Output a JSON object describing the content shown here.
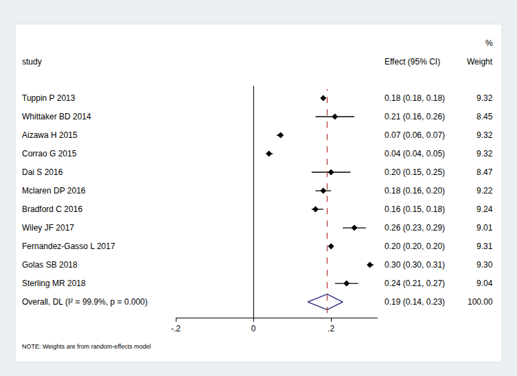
{
  "chart_data": {
    "type": "forest",
    "columns": {
      "study": "study",
      "effect": "Effect (95% CI)",
      "weight_unit": "%",
      "weight": "Weight"
    },
    "studies": [
      {
        "name": "Tuppin P 2013",
        "effect": 0.18,
        "ci_low": 0.18,
        "ci_high": 0.18,
        "effect_label": "0.18 (0.18, 0.18)",
        "weight": 9.32
      },
      {
        "name": "Whittaker BD 2014",
        "effect": 0.21,
        "ci_low": 0.16,
        "ci_high": 0.26,
        "effect_label": "0.21 (0.16, 0.26)",
        "weight": 8.45
      },
      {
        "name": "Aizawa H 2015",
        "effect": 0.07,
        "ci_low": 0.06,
        "ci_high": 0.07,
        "effect_label": "0.07 (0.06, 0.07)",
        "weight": 9.32
      },
      {
        "name": "Corrao G 2015",
        "effect": 0.04,
        "ci_low": 0.04,
        "ci_high": 0.05,
        "effect_label": "0.04 (0.04, 0.05)",
        "weight": 9.32
      },
      {
        "name": "Dai S 2016",
        "effect": 0.2,
        "ci_low": 0.15,
        "ci_high": 0.25,
        "effect_label": "0.20 (0.15, 0.25)",
        "weight": 8.47
      },
      {
        "name": "Mclaren DP 2016",
        "effect": 0.18,
        "ci_low": 0.16,
        "ci_high": 0.2,
        "effect_label": "0.18 (0.16, 0.20)",
        "weight": 9.22
      },
      {
        "name": "Bradford C 2016",
        "effect": 0.16,
        "ci_low": 0.15,
        "ci_high": 0.18,
        "effect_label": "0.16 (0.15, 0.18)",
        "weight": 9.24
      },
      {
        "name": "Wiley JF 2017",
        "effect": 0.26,
        "ci_low": 0.23,
        "ci_high": 0.29,
        "effect_label": "0.26 (0.23, 0.29)",
        "weight": 9.01
      },
      {
        "name": "Fernandez-Gasso L 2017",
        "effect": 0.2,
        "ci_low": 0.2,
        "ci_high": 0.2,
        "effect_label": "0.20 (0.20, 0.20)",
        "weight": 9.31
      },
      {
        "name": "Golas SB 2018",
        "effect": 0.3,
        "ci_low": 0.3,
        "ci_high": 0.31,
        "effect_label": "0.30 (0.30, 0.31)",
        "weight": 9.3,
        "weight_label": "9.30"
      },
      {
        "name": "Sterling MR 2018",
        "effect": 0.24,
        "ci_low": 0.21,
        "ci_high": 0.27,
        "effect_label": "0.24 (0.21, 0.27)",
        "weight": 9.04
      }
    ],
    "overall": {
      "name": "Overall, DL (I² = 99.9%, p = 0.000)",
      "effect": 0.19,
      "ci_low": 0.14,
      "ci_high": 0.23,
      "effect_label": "0.19 (0.14, 0.23)",
      "weight": 100,
      "weight_label": "100.00"
    },
    "note": "NOTE: Weights are from random-effects model",
    "xlim": [
      -0.2,
      0.32
    ],
    "xticks": [
      {
        "value": -0.2,
        "label": "-.2"
      },
      {
        "value": 0,
        "label": "0"
      },
      {
        "value": 0.2,
        "label": ".2"
      }
    ],
    "tick_labels": "x",
    "grid": false
  }
}
